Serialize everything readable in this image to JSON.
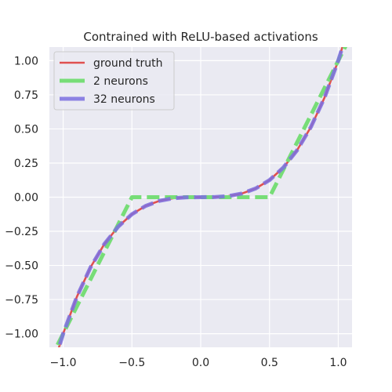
{
  "chart_data": {
    "type": "line",
    "title": "Contrained with ReLU-based activations",
    "xlabel": "",
    "ylabel": "",
    "xlim": [
      -1.1,
      1.1
    ],
    "ylim": [
      -1.1,
      1.1
    ],
    "grid": true,
    "legend_position": "upper-left",
    "x_ticks": [
      -1.0,
      -0.5,
      0.0,
      0.5,
      1.0
    ],
    "x_tick_labels": [
      "−1.0",
      "−0.5",
      "0.0",
      "0.5",
      "1.0"
    ],
    "y_ticks": [
      1.0,
      0.75,
      0.5,
      0.25,
      0.0,
      -0.25,
      -0.5,
      -0.75,
      -1.0
    ],
    "y_tick_labels": [
      "1.00",
      "0.75",
      "0.50",
      "0.25",
      "0.00",
      "−0.25",
      "−0.50",
      "−0.75",
      "−1.00"
    ],
    "series": [
      {
        "name": "ground truth",
        "color": "#e05050",
        "style": "solid",
        "x": [
          -1.1,
          -1.0,
          -0.9,
          -0.8,
          -0.7,
          -0.6,
          -0.5,
          -0.4,
          -0.3,
          -0.2,
          -0.1,
          0.0,
          0.1,
          0.2,
          0.3,
          0.4,
          0.5,
          0.6,
          0.7,
          0.8,
          0.9,
          1.0,
          1.1
        ],
        "y": [
          -1.331,
          -1.0,
          -0.729,
          -0.512,
          -0.343,
          -0.216,
          -0.125,
          -0.064,
          -0.027,
          -0.008,
          -0.001,
          0.0,
          0.001,
          0.008,
          0.027,
          0.064,
          0.125,
          0.216,
          0.343,
          0.512,
          0.729,
          1.0,
          1.331
        ]
      },
      {
        "name": "2 neurons",
        "color": "#77dd77",
        "style": "dashed",
        "x": [
          -1.1,
          -0.5,
          0.5,
          1.1
        ],
        "y": [
          -1.2,
          0.0,
          0.0,
          1.2
        ]
      },
      {
        "name": "32 neurons",
        "color": "#7b6ee0",
        "style": "dashed",
        "x": [
          -1.1,
          -1.0,
          -0.9,
          -0.8,
          -0.7,
          -0.6,
          -0.5,
          -0.4,
          -0.3,
          -0.2,
          -0.1,
          0.0,
          0.1,
          0.2,
          0.3,
          0.4,
          0.5,
          0.6,
          0.7,
          0.8,
          0.9,
          1.0,
          1.1
        ],
        "y": [
          -1.331,
          -1.0,
          -0.729,
          -0.512,
          -0.343,
          -0.216,
          -0.125,
          -0.064,
          -0.027,
          -0.008,
          -0.001,
          0.0,
          0.001,
          0.008,
          0.027,
          0.064,
          0.125,
          0.216,
          0.343,
          0.512,
          0.729,
          1.0,
          1.331
        ]
      }
    ]
  }
}
